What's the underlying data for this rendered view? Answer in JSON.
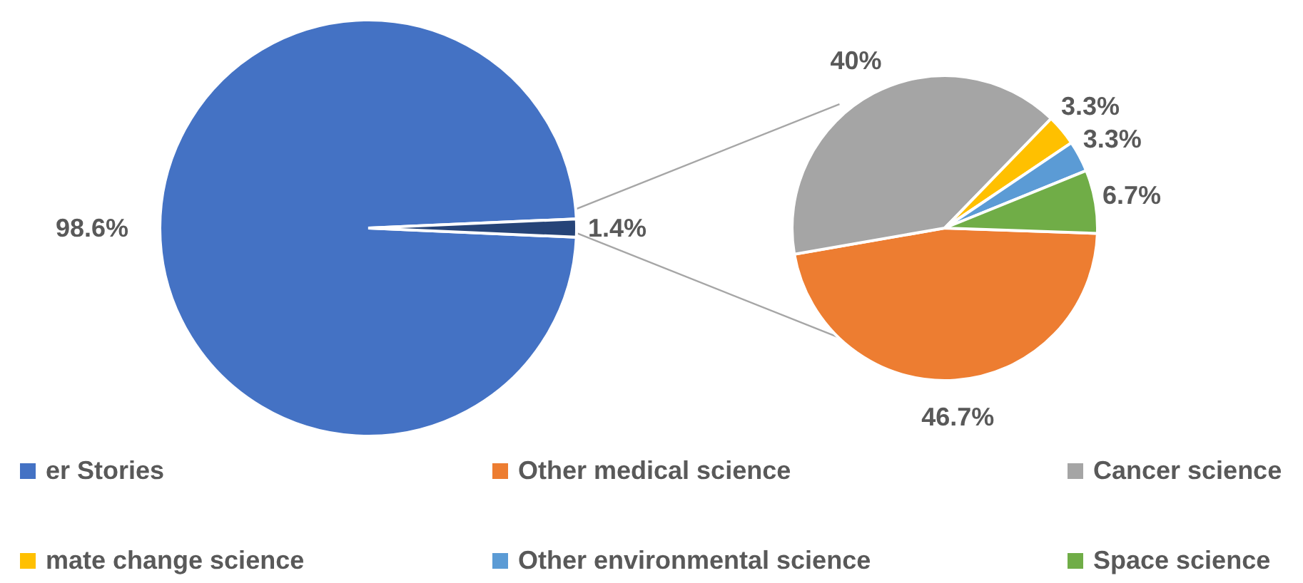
{
  "chart_data": [
    {
      "type": "pie",
      "categories": [
        "er Stories",
        null
      ],
      "values": [
        98.6,
        1.4
      ],
      "colors": [
        "#4472c4",
        "#264478"
      ],
      "value_labels": [
        "98.6%",
        "1.4%"
      ],
      "legend": "bottom"
    },
    {
      "type": "pie",
      "categories": [
        "Other medical science",
        "Cancer science",
        "mate change science",
        "Other environmental science",
        "Space science"
      ],
      "values": [
        46.7,
        40,
        3.3,
        3.3,
        6.7
      ],
      "colors": [
        "#ed7d31",
        "#a5a5a5",
        "#ffc000",
        "#5b9bd5",
        "#70ad47"
      ],
      "value_labels": [
        "46.7%",
        "40%",
        "3.3%",
        "3.3%",
        "6.7%"
      ],
      "legend": "bottom"
    }
  ]
}
